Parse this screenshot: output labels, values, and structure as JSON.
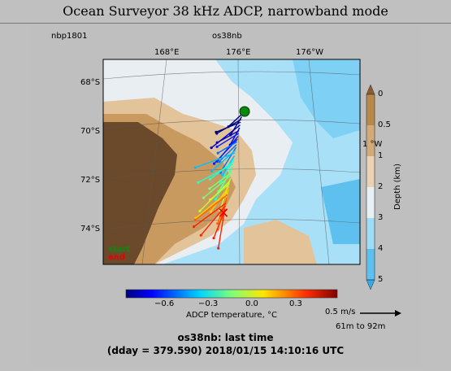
{
  "window": {
    "title": "Ocean Surveyor 38 kHz ADCP, narrowband mode"
  },
  "figure": {
    "cruise_id": "nbp1801",
    "instrument": "os38nb",
    "lon_ticks": [
      "168°E",
      "176°E",
      "176°W"
    ],
    "lat_ticks": [
      "68°S",
      "70°S",
      "72°S",
      "74°S"
    ],
    "extra_lon_label": "1 °W",
    "legend": {
      "start": "start",
      "end": "end",
      "start_color": "#0a8a0a",
      "end_color": "#e60000"
    },
    "depth_colorbar": {
      "label": "Depth (km)",
      "ticks": [
        "0",
        "0.5",
        "1",
        "2",
        "3",
        "4",
        "5"
      ],
      "colors": [
        "#b8894a",
        "#d2ab78",
        "#ecd2b4",
        "#e6f0f5",
        "#9fdcf8",
        "#5ec0ee",
        "#37a9e6"
      ]
    },
    "temp_colorbar": {
      "label": "ADCP temperature, °C",
      "ticks": [
        "−0.6",
        "−0.3",
        "0.0",
        "0.3"
      ]
    },
    "vector_scale": {
      "label": "0.5 m/s",
      "depth_range": "61m to 92m"
    },
    "footer": {
      "line1": "os38nb: last time",
      "line2": "(dday = 379.590) 2018/01/15 14:10:16 UTC"
    },
    "colors": {
      "land": "#6b4a2c",
      "ocean_deep": "#a8e0f8",
      "ice_shelf": "#e8eef2"
    }
  }
}
